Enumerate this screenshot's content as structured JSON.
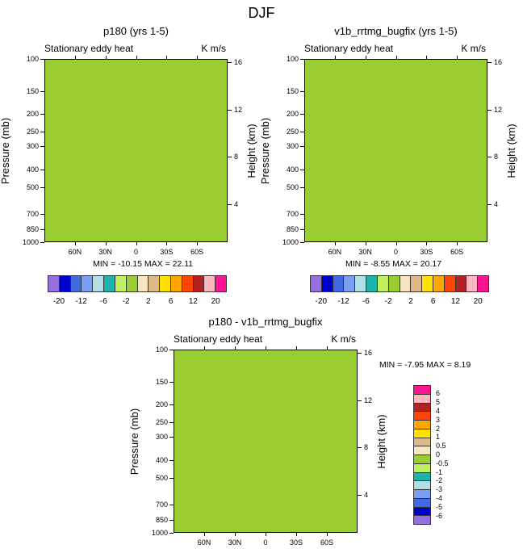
{
  "title": "DJF",
  "panels": [
    {
      "title": "p180 (yrs 1-5)",
      "left_subtitle": "Stationary eddy heat",
      "right_subtitle": "K m/s",
      "ylabel": "Pressure (mb)",
      "y2label": "Height (km)",
      "minmax": "MIN = -10.15  MAX =  22.11"
    },
    {
      "title": "v1b_rrtmg_bugfix (yrs 1-5)",
      "left_subtitle": "Stationary eddy heat",
      "right_subtitle": "K m/s",
      "ylabel": "Pressure (mb)",
      "y2label": "Height (km)",
      "minmax": "MIN =  -8.55  MAX =  20.17"
    },
    {
      "title": "p180 - v1b_rrtmg_bugfix",
      "left_subtitle": "Stationary eddy heat",
      "right_subtitle": "K m/s",
      "ylabel": "Pressure (mb)",
      "y2label": "Height (km)",
      "minmax": "MIN =  -7.95  MAX =   8.19"
    }
  ],
  "axes": {
    "xticks": [
      {
        "value": -60,
        "label": "60N"
      },
      {
        "value": -30,
        "label": "30N"
      },
      {
        "value": 0,
        "label": "0"
      },
      {
        "value": 30,
        "label": "30S"
      },
      {
        "value": 60,
        "label": "60S"
      }
    ],
    "pressure_ticks": [
      "100",
      "150",
      "200",
      "250",
      "300",
      "400",
      "500",
      "700",
      "850",
      "1000"
    ],
    "height_ticks": [
      "16",
      "12",
      "8",
      "4"
    ]
  },
  "colorbar_top": {
    "colors": [
      "#9370DB",
      "#0000CD",
      "#4169E1",
      "#7B9EF0",
      "#B0E0E6",
      "#20B2AA",
      "#C0F060",
      "#9ACD32",
      "#F5E6C0",
      "#DEB887",
      "#FFE000",
      "#FFA500",
      "#FF4500",
      "#B22222",
      "#FFB6C1",
      "#FF1493"
    ],
    "labels": [
      "-20",
      "-12",
      "-6",
      "-2",
      "2",
      "6",
      "12",
      "20"
    ]
  },
  "colorbar_diff": {
    "colors": [
      "#FF1493",
      "#FFB6C1",
      "#B22222",
      "#FF4500",
      "#FFA500",
      "#FFE000",
      "#DEB887",
      "#F5E6C0",
      "#9ACD32",
      "#C0F060",
      "#20B2AA",
      "#B0E0E6",
      "#7B9EF0",
      "#4169E1",
      "#0000CD",
      "#9370DB"
    ],
    "labels": [
      "6",
      "5",
      "4",
      "3",
      "2",
      "1",
      "0.5",
      "0",
      "-0.5",
      "-1",
      "-2",
      "-3",
      "-4",
      "-5",
      "-6"
    ]
  },
  "chart_data": [
    {
      "type": "heatmap",
      "title": "p180 (yrs 1-5)",
      "subtitle": "Stationary eddy heat",
      "units": "K m/s",
      "xlabel": "",
      "ylabel": "Pressure (mb)",
      "y2label": "Height (km)",
      "xlim": [
        -90,
        90
      ],
      "ylim": [
        1000,
        100
      ],
      "min": -10.15,
      "max": 22.11
    },
    {
      "type": "heatmap",
      "title": "v1b_rrtmg_bugfix (yrs 1-5)",
      "subtitle": "Stationary eddy heat",
      "units": "K m/s",
      "xlabel": "",
      "ylabel": "Pressure (mb)",
      "y2label": "Height (km)",
      "xlim": [
        -90,
        90
      ],
      "ylim": [
        1000,
        100
      ],
      "min": -8.55,
      "max": 20.17
    },
    {
      "type": "heatmap",
      "title": "p180 - v1b_rrtmg_bugfix",
      "subtitle": "Stationary eddy heat",
      "units": "K m/s",
      "xlabel": "",
      "ylabel": "Pressure (mb)",
      "y2label": "Height (km)",
      "xlim": [
        -90,
        90
      ],
      "ylim": [
        1000,
        100
      ],
      "min": -7.95,
      "max": 8.19
    }
  ]
}
